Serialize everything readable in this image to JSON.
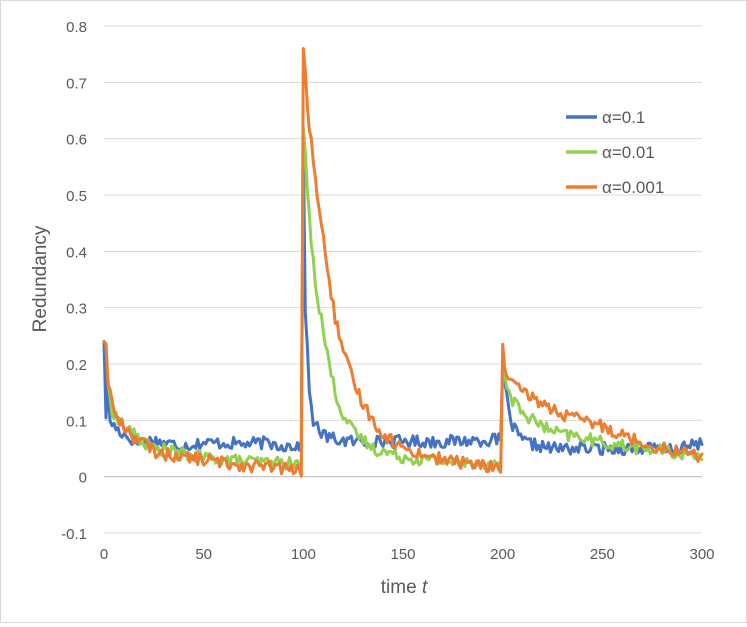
{
  "chart_data": {
    "type": "line",
    "title": "",
    "xlabel_prefix": "time ",
    "xlabel_var": "t",
    "ylabel": "Redundancy",
    "xlim": [
      0,
      300
    ],
    "ylim": [
      -0.1,
      0.8
    ],
    "xticks": [
      0,
      50,
      100,
      150,
      200,
      250,
      300
    ],
    "yticks": [
      -0.1,
      0,
      0.1,
      0.2,
      0.3,
      0.4,
      0.5,
      0.6,
      0.7,
      0.8
    ],
    "ytick_labels": [
      "-0.1",
      "0",
      "0.1",
      "0.2",
      "0.3",
      "0.4",
      "0.5",
      "0.6",
      "0.7",
      "0.8"
    ],
    "grid": "horizontal",
    "legend_position": "right",
    "series": [
      {
        "name": "α=0.1",
        "color": "#4472C4",
        "x": [
          0,
          1,
          2,
          3,
          5,
          8,
          12,
          18,
          25,
          30,
          40,
          50,
          60,
          70,
          80,
          90,
          99,
          100,
          101,
          103,
          105,
          108,
          112,
          118,
          125,
          135,
          150,
          170,
          190,
          199,
          200,
          201,
          203,
          205,
          208,
          212,
          218,
          225,
          235,
          250,
          270,
          290,
          300
        ],
        "y": [
          0.24,
          0.11,
          0.16,
          0.1,
          0.09,
          0.08,
          0.07,
          0.06,
          0.065,
          0.06,
          0.055,
          0.06,
          0.06,
          0.058,
          0.06,
          0.055,
          0.055,
          0.6,
          0.3,
          0.15,
          0.1,
          0.08,
          0.07,
          0.065,
          0.062,
          0.062,
          0.063,
          0.062,
          0.065,
          0.065,
          0.2,
          0.16,
          0.12,
          0.09,
          0.07,
          0.06,
          0.055,
          0.05,
          0.05,
          0.05,
          0.05,
          0.05,
          0.06
        ]
      },
      {
        "name": "α=0.01",
        "color": "#92D050",
        "x": [
          0,
          1,
          2,
          4,
          7,
          10,
          15,
          20,
          25,
          30,
          40,
          50,
          60,
          70,
          80,
          90,
          99,
          100,
          101,
          102,
          104,
          106,
          108,
          110,
          113,
          116,
          120,
          125,
          130,
          135,
          140,
          150,
          160,
          170,
          180,
          190,
          199,
          200,
          201,
          203,
          206,
          210,
          215,
          220,
          225,
          230,
          240,
          250,
          260,
          270,
          280,
          290,
          300
        ],
        "y": [
          0.24,
          0.24,
          0.16,
          0.12,
          0.1,
          0.09,
          0.075,
          0.06,
          0.05,
          0.048,
          0.04,
          0.035,
          0.03,
          0.028,
          0.025,
          0.025,
          0.02,
          0.62,
          0.58,
          0.5,
          0.42,
          0.35,
          0.3,
          0.26,
          0.2,
          0.15,
          0.11,
          0.08,
          0.065,
          0.05,
          0.045,
          0.035,
          0.03,
          0.028,
          0.025,
          0.025,
          0.02,
          0.2,
          0.18,
          0.15,
          0.13,
          0.115,
          0.1,
          0.09,
          0.08,
          0.075,
          0.07,
          0.06,
          0.055,
          0.05,
          0.045,
          0.04,
          0.04
        ]
      },
      {
        "name": "α=0.001",
        "color": "#ED7D31",
        "x": [
          0,
          1,
          2,
          4,
          7,
          10,
          15,
          20,
          25,
          30,
          40,
          50,
          60,
          70,
          80,
          90,
          99,
          100,
          101,
          102,
          104,
          106,
          108,
          110,
          113,
          116,
          120,
          125,
          130,
          135,
          140,
          150,
          160,
          170,
          180,
          190,
          199,
          200,
          201,
          203,
          206,
          210,
          215,
          220,
          225,
          230,
          240,
          250,
          260,
          270,
          280,
          290,
          300
        ],
        "y": [
          0.24,
          0.24,
          0.17,
          0.13,
          0.1,
          0.09,
          0.07,
          0.06,
          0.045,
          0.04,
          0.035,
          0.03,
          0.025,
          0.02,
          0.018,
          0.015,
          0.01,
          0.76,
          0.72,
          0.65,
          0.6,
          0.53,
          0.47,
          0.42,
          0.35,
          0.28,
          0.22,
          0.17,
          0.13,
          0.1,
          0.075,
          0.05,
          0.04,
          0.03,
          0.025,
          0.02,
          0.015,
          0.235,
          0.19,
          0.17,
          0.16,
          0.15,
          0.14,
          0.13,
          0.12,
          0.11,
          0.1,
          0.09,
          0.075,
          0.06,
          0.05,
          0.045,
          0.035
        ]
      }
    ]
  }
}
